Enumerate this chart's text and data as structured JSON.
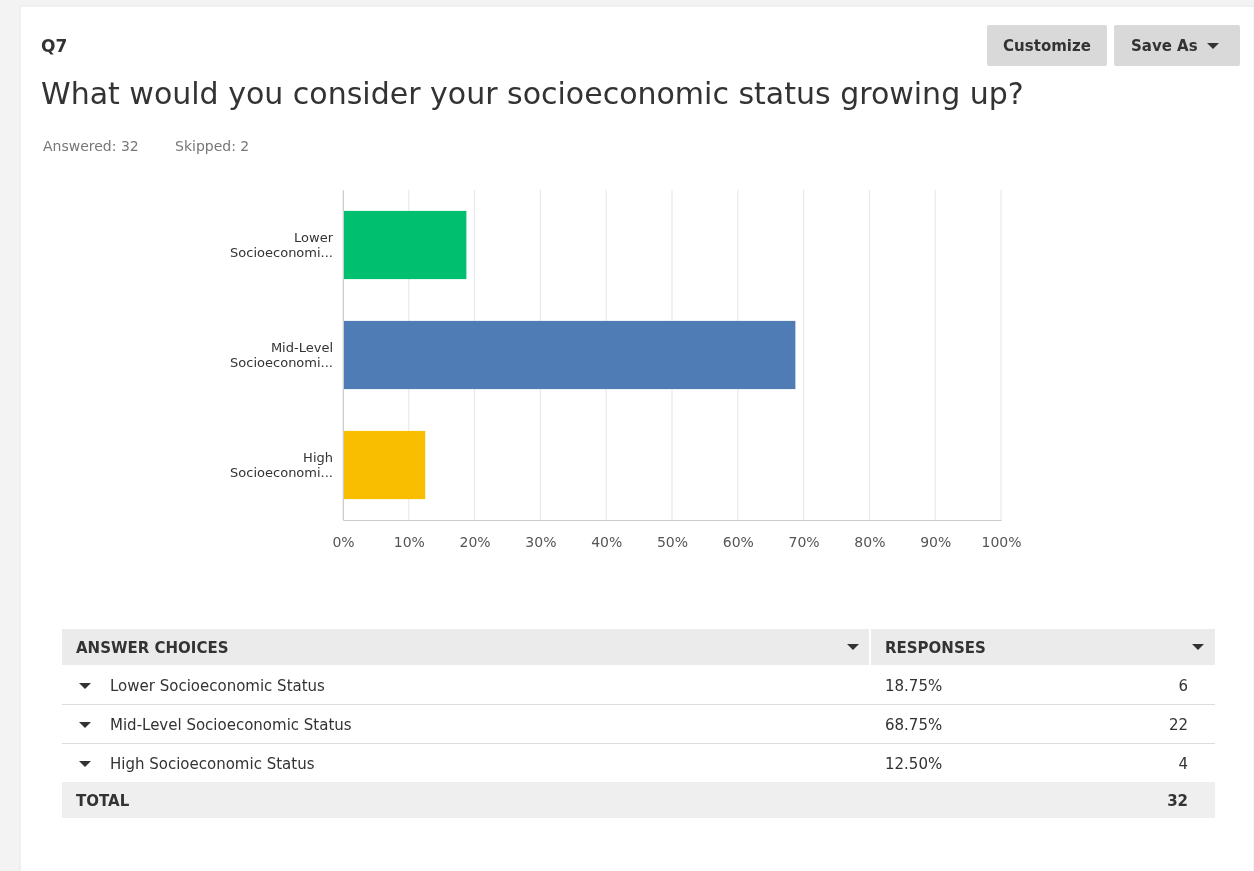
{
  "chart_data": {
    "type": "bar",
    "orientation": "horizontal",
    "title": "What would you consider your socioeconomic status growing up?",
    "categories": [
      "Lower Socioeconomi...",
      "Mid-Level Socioeconomi...",
      "High Socioeconomi..."
    ],
    "values": [
      18.75,
      68.75,
      12.5
    ],
    "colors": [
      "#00bf6f",
      "#507cb6",
      "#f9be00"
    ],
    "xlim": [
      0,
      100
    ],
    "xticks": [
      {
        "value": 0,
        "label": "0%"
      },
      {
        "value": 10,
        "label": "10%"
      },
      {
        "value": 20,
        "label": "20%"
      },
      {
        "value": 30,
        "label": "30%"
      },
      {
        "value": 40,
        "label": "40%"
      },
      {
        "value": 50,
        "label": "50%"
      },
      {
        "value": 60,
        "label": "60%"
      },
      {
        "value": 70,
        "label": "70%"
      },
      {
        "value": 80,
        "label": "80%"
      },
      {
        "value": 90,
        "label": "90%"
      },
      {
        "value": 100,
        "label": "100%"
      }
    ],
    "grid": "x",
    "annotations": [
      "Q7",
      "Customize",
      "Save As",
      "Answered: 32",
      "Skipped: 2",
      "ANSWER CHOICES",
      "RESPONSES",
      "Lower Socioeconomic Status",
      "Mid-Level Socioeconomic Status",
      "High Socioeconomic Status",
      "6",
      "22",
      "4",
      "TOTAL",
      "32",
      "18.75%",
      "68.75%",
      "12.50%"
    ]
  }
}
